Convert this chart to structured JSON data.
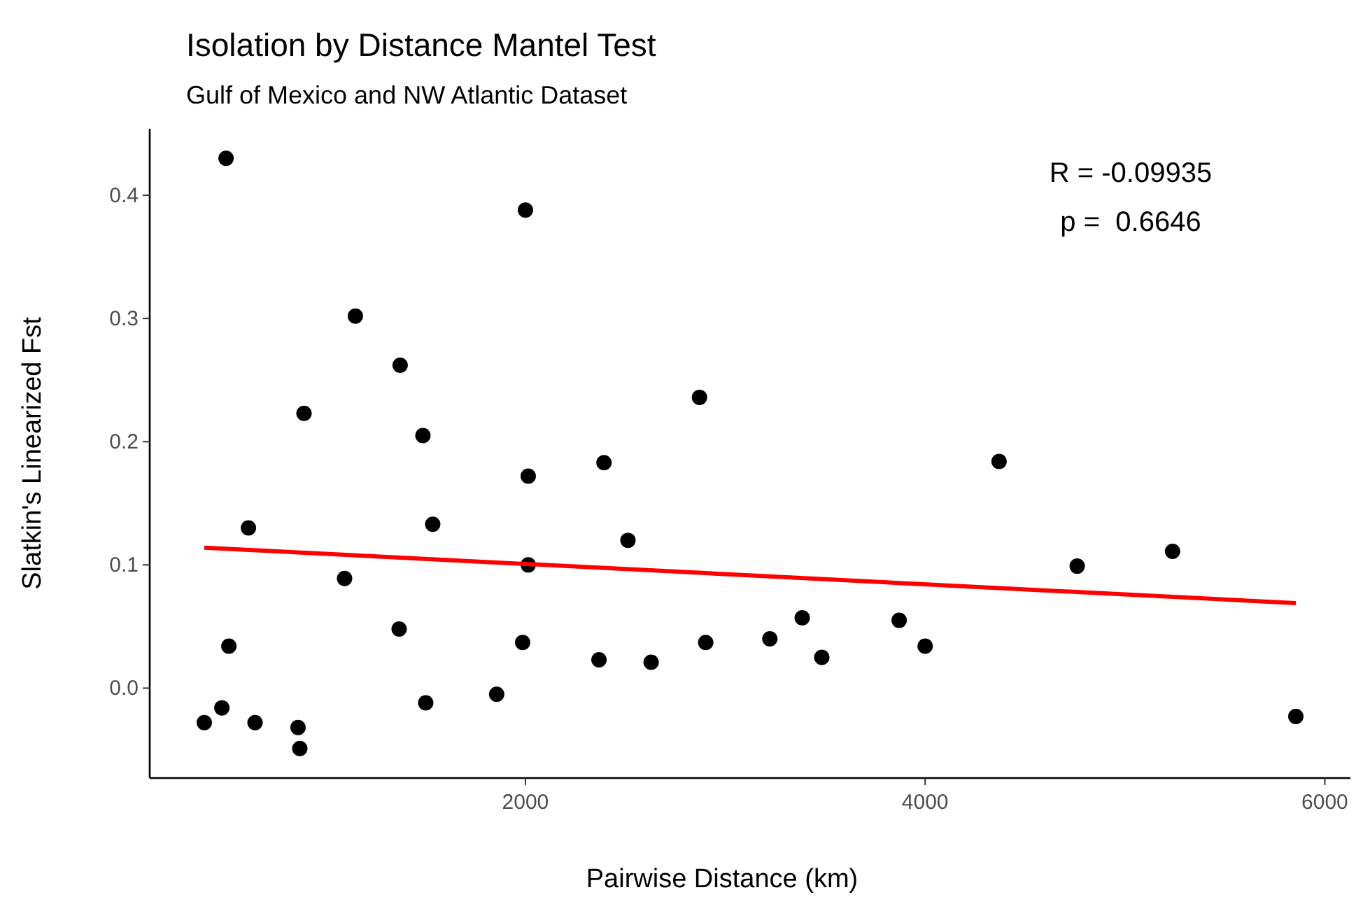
{
  "chart_data": {
    "type": "scatter",
    "title": "Isolation by Distance Mantel Test",
    "subtitle": "Gulf of Mexico and NW Atlantic Dataset",
    "xlabel": "Pairwise Distance (km)",
    "ylabel": "Slatkin's Linearized Fst",
    "annotations": [
      "R = -0.09935",
      "p =  0.6646"
    ],
    "xlim": [
      120,
      6128
    ],
    "xticks": [
      2000,
      4000,
      6000
    ],
    "ylim": [
      -0.073,
      0.454
    ],
    "yticks": [
      {
        "value": 0,
        "label": "0.0"
      },
      0.1,
      0.2,
      0.3,
      0.4
    ],
    "grid": false,
    "series": [
      {
        "marker": "circle",
        "color": "#000000",
        "x": [
          393,
          502,
          481,
          516,
          614,
          647,
          862,
          871,
          892,
          1095,
          1149,
          1373,
          1368,
          1487,
          1501,
          1536,
          1856,
          2000,
          1986,
          2014,
          2014,
          2368,
          2393,
          2513,
          2629,
          2871,
          2902,
          3223,
          3385,
          3483,
          3870,
          4000,
          4370,
          4761,
          5238,
          5855
        ],
        "values": [
          -0.028,
          0.43,
          -0.016,
          0.034,
          0.13,
          -0.028,
          -0.032,
          -0.049,
          0.223,
          0.089,
          0.302,
          0.262,
          0.048,
          0.205,
          -0.012,
          0.133,
          -0.005,
          0.388,
          0.037,
          0.172,
          0.1,
          0.023,
          0.183,
          0.12,
          0.021,
          0.236,
          0.037,
          0.04,
          0.057,
          0.025,
          0.055,
          0.034,
          0.184,
          0.099,
          0.111,
          -0.023
        ]
      },
      {
        "type": "line",
        "marker": "none",
        "color": "#ff0000",
        "line_style": "solid",
        "x": [
          393,
          5855
        ],
        "values": [
          0.114,
          0.069
        ]
      }
    ]
  }
}
